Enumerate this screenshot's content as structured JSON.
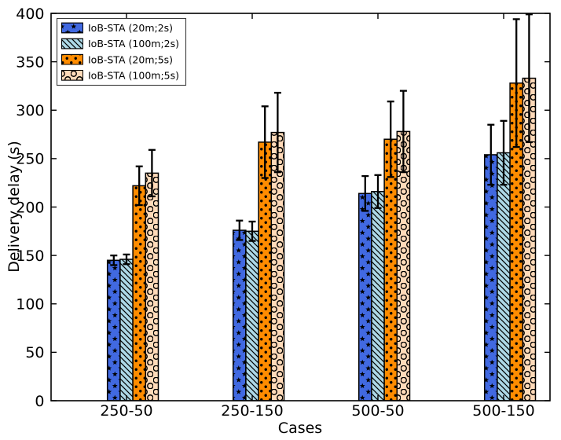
{
  "chart_data": {
    "type": "bar",
    "title": "",
    "xlabel": "Cases",
    "ylabel": "Delivery delay (s)",
    "categories": [
      "250-50",
      "250-150",
      "500-50",
      "500-150"
    ],
    "series": [
      {
        "name": "IoB-STA (20m;2s)",
        "color": "#4169E1",
        "hatch": "star",
        "values": [
          145,
          176,
          214,
          254
        ],
        "errors": [
          5,
          10,
          18,
          31
        ]
      },
      {
        "name": "IoB-STA (100m;2s)",
        "color": "#ADD8E6",
        "hatch": "diagonal",
        "values": [
          146,
          175,
          216,
          256
        ],
        "errors": [
          5,
          10,
          17,
          33
        ]
      },
      {
        "name": "IoB-STA (20m;5s)",
        "color": "#FF8C00",
        "hatch": "dot",
        "values": [
          222,
          267,
          270,
          328
        ],
        "errors": [
          20,
          37,
          39,
          66
        ]
      },
      {
        "name": "IoB-STA (100m;5s)",
        "color": "#FFDAB9",
        "hatch": "circle",
        "values": [
          235,
          277,
          278,
          333
        ],
        "errors": [
          24,
          41,
          42,
          66
        ]
      }
    ],
    "ylim": [
      0,
      400
    ],
    "yticks": [
      0,
      50,
      100,
      150,
      200,
      250,
      300,
      350,
      400
    ],
    "legend_position": "upper left",
    "grid": false,
    "error_bars": true,
    "axis_color": "#000000",
    "background": "#ffffff"
  }
}
